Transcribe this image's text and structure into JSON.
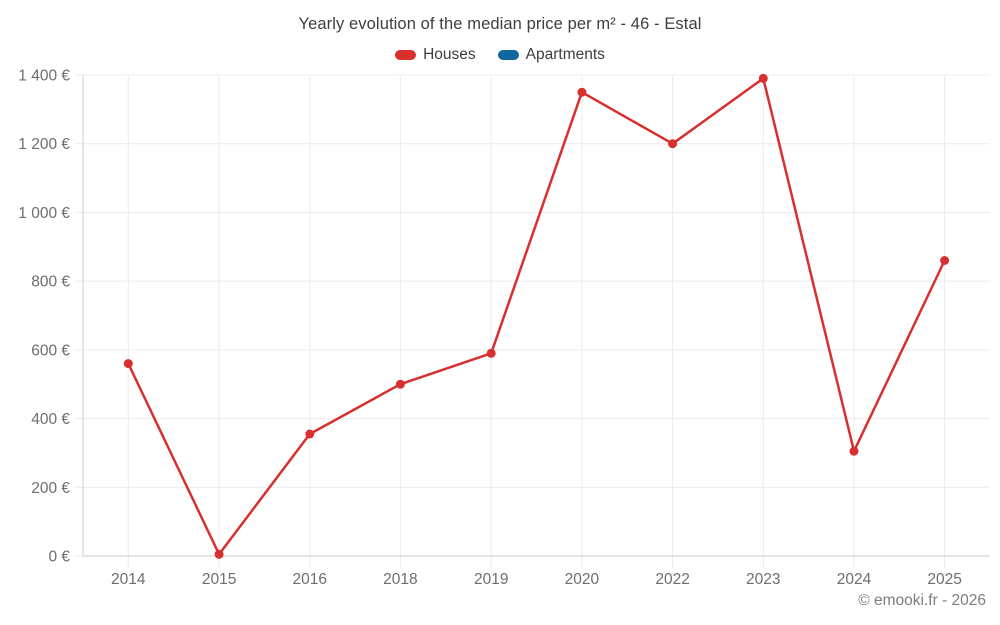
{
  "page": {
    "title": "Yearly evolution of the median price per m² - 46 - Estal",
    "copyright": "© emooki.fr - 2026"
  },
  "legend": {
    "items": [
      {
        "label": "Houses",
        "color": "#d7302f"
      },
      {
        "label": "Apartments",
        "color": "#11689d"
      }
    ]
  },
  "chart_data": {
    "type": "line",
    "title": "Yearly evolution of the median price per m² - 46 - Estal",
    "categories": [
      "2014",
      "2015",
      "2016",
      "2018",
      "2019",
      "2020",
      "2022",
      "2023",
      "2024",
      "2025"
    ],
    "series": [
      {
        "name": "Houses",
        "color": "#d7302f",
        "values": [
          560,
          5,
          355,
          500,
          590,
          1350,
          1200,
          1390,
          305,
          860
        ]
      },
      {
        "name": "Apartments",
        "color": "#11689d",
        "values": []
      }
    ],
    "xlabel": "",
    "ylabel": "",
    "ylim": [
      0,
      1400
    ],
    "yticks": [
      {
        "value": 0,
        "label": "0 €"
      },
      {
        "value": 200,
        "label": "200 €"
      },
      {
        "value": 400,
        "label": "400 €"
      },
      {
        "value": 600,
        "label": "600 €"
      },
      {
        "value": 800,
        "label": "800 €"
      },
      {
        "value": 1000,
        "label": "1 000 €"
      },
      {
        "value": 1200,
        "label": "1 200 €"
      },
      {
        "value": 1400,
        "label": "1 400 €"
      }
    ],
    "grid": true,
    "legend_position": "top",
    "colors": {
      "gridline": "#ececec",
      "axis": "#cccccc",
      "tick_label": "#6e6e6e"
    }
  }
}
